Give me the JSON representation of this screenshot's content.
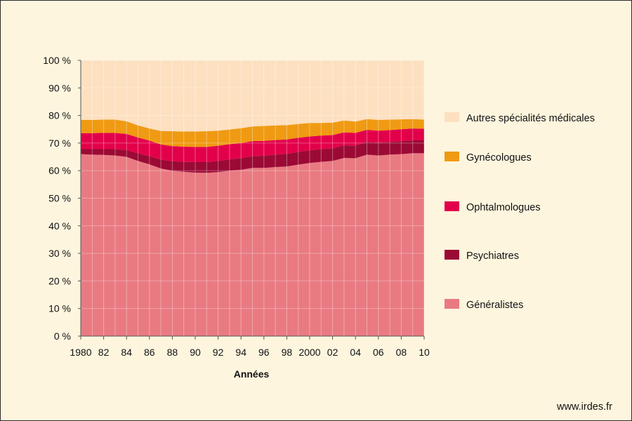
{
  "chart_data": {
    "type": "area",
    "stacked": true,
    "percent": true,
    "xlabel": "Années",
    "ylim": [
      0,
      100
    ],
    "yticks": [
      "0 %",
      "10 %",
      "20 %",
      "30 %",
      "40 %",
      "50 %",
      "60 %",
      "70 %",
      "80 %",
      "90 %",
      "100 %"
    ],
    "xticks": [
      "1980",
      "82",
      "84",
      "86",
      "88",
      "90",
      "92",
      "94",
      "96",
      "98",
      "2000",
      "02",
      "04",
      "06",
      "08",
      "10"
    ],
    "grid": true,
    "legend_position": "right",
    "x": [
      1980,
      1981,
      1982,
      1983,
      1984,
      1985,
      1986,
      1987,
      1988,
      1989,
      1990,
      1991,
      1992,
      1993,
      1994,
      1995,
      1996,
      1997,
      1998,
      1999,
      2000,
      2001,
      2002,
      2003,
      2004,
      2005,
      2006,
      2007,
      2008,
      2009,
      2010
    ],
    "series": [
      {
        "name": "Généralistes",
        "color": "#e97a82",
        "values": [
          66,
          65.8,
          65.7,
          65.5,
          65,
          63.5,
          62.3,
          60.8,
          60,
          59.6,
          59.3,
          59.2,
          59.5,
          60,
          60.3,
          61,
          61,
          61.3,
          61.5,
          62.2,
          62.8,
          63.2,
          63.5,
          64.6,
          64.5,
          65.8,
          65.5,
          65.8,
          66,
          66.3,
          66.3
        ]
      },
      {
        "name": "Psychiatres",
        "color": "#9b0a35",
        "values": [
          1.8,
          2,
          2.1,
          2.3,
          2.5,
          2.8,
          3,
          3.2,
          3.4,
          3.6,
          3.8,
          3.9,
          4,
          4.1,
          4.2,
          4.3,
          4.4,
          4.5,
          4.6,
          4.6,
          4.6,
          4.6,
          4.6,
          4.6,
          4.6,
          4.6,
          4.6,
          4.6,
          4.7,
          4.7,
          4.7
        ]
      },
      {
        "name": "Ophtalmologues",
        "color": "#e3004b",
        "values": [
          5.8,
          5.8,
          5.9,
          5.9,
          5.8,
          5.7,
          5.6,
          5.5,
          5.5,
          5.5,
          5.5,
          5.5,
          5.5,
          5.5,
          5.5,
          5.4,
          5.4,
          5.3,
          5.2,
          5.1,
          5,
          4.9,
          4.8,
          4.7,
          4.6,
          4.4,
          4.4,
          4.3,
          4.3,
          4.3,
          4.2
        ]
      },
      {
        "name": "Gynécologues",
        "color": "#ef9a12",
        "values": [
          4.8,
          4.8,
          4.8,
          4.8,
          4.6,
          4.4,
          4.4,
          4.9,
          5.4,
          5.5,
          5.6,
          5.7,
          5.5,
          5.3,
          5.4,
          5.3,
          5.4,
          5.3,
          5.2,
          5,
          4.9,
          4.6,
          4.5,
          4.3,
          4.1,
          3.9,
          3.9,
          3.8,
          3.6,
          3.4,
          3.3
        ]
      },
      {
        "name": "Autres spécialités médicales",
        "color": "#fde0c0",
        "values": [
          21.6,
          21.6,
          21.5,
          21.5,
          22.1,
          23.6,
          24.7,
          25.6,
          25.7,
          25.8,
          25.8,
          25.7,
          25.5,
          25.1,
          24.6,
          24,
          23.8,
          23.6,
          23.5,
          23.1,
          22.7,
          22.7,
          22.6,
          21.8,
          22.2,
          21.3,
          21.6,
          21.5,
          21.4,
          21.3,
          21.5
        ]
      }
    ],
    "legend_order": [
      "Autres spécialités médicales",
      "Gynécologues",
      "Ophtalmologues",
      "Psychiatres",
      "Généralistes"
    ]
  },
  "footer": {
    "url": "www.irdes.fr"
  }
}
